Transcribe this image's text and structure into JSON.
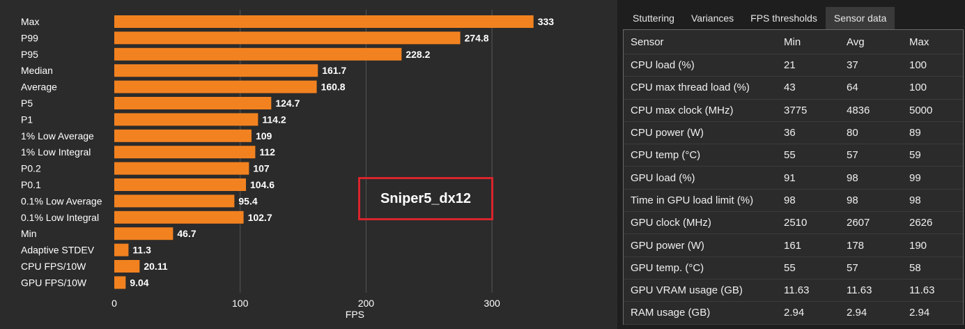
{
  "chart_data": {
    "type": "bar",
    "orientation": "horizontal",
    "categories": [
      "Max",
      "P99",
      "P95",
      "Median",
      "Average",
      "P5",
      "P1",
      "1% Low Average",
      "1% Low Integral",
      "P0.2",
      "P0.1",
      "0.1% Low Average",
      "0.1% Low Integral",
      "Min",
      "Adaptive STDEV",
      "CPU FPS/10W",
      "GPU FPS/10W"
    ],
    "values": [
      333,
      274.8,
      228.2,
      161.7,
      160.8,
      124.7,
      114.2,
      109,
      112,
      107,
      104.6,
      95.4,
      102.7,
      46.7,
      11.3,
      20.11,
      9.04
    ],
    "value_labels": [
      "333",
      "274.8",
      "228.2",
      "161.7",
      "160.8",
      "124.7",
      "114.2",
      "109",
      "112",
      "107",
      "104.6",
      "95.4",
      "102.7",
      "46.7",
      "11.3",
      "20.11",
      "9.04"
    ],
    "xlabel": "FPS",
    "xlim": [
      0,
      350
    ],
    "xticks": [
      0,
      100,
      200,
      300
    ],
    "grid": true,
    "bar_color": "#f28220"
  },
  "overlay_label": "Sniper5_dx12",
  "tabs": [
    {
      "label": "Stuttering",
      "active": false
    },
    {
      "label": "Variances",
      "active": false
    },
    {
      "label": "FPS thresholds",
      "active": false
    },
    {
      "label": "Sensor data",
      "active": true
    }
  ],
  "sensor_table": {
    "headers": {
      "sensor": "Sensor",
      "min": "Min",
      "avg": "Avg",
      "max": "Max"
    },
    "rows": [
      {
        "sensor": "CPU load (%)",
        "min": "21",
        "avg": "37",
        "max": "100"
      },
      {
        "sensor": "CPU max thread load (%)",
        "min": "43",
        "avg": "64",
        "max": "100"
      },
      {
        "sensor": "CPU max clock (MHz)",
        "min": "3775",
        "avg": "4836",
        "max": "5000"
      },
      {
        "sensor": "CPU power (W)",
        "min": "36",
        "avg": "80",
        "max": "89"
      },
      {
        "sensor": "CPU temp (°C)",
        "min": "55",
        "avg": "57",
        "max": "59"
      },
      {
        "sensor": "GPU load (%)",
        "min": "91",
        "avg": "98",
        "max": "99"
      },
      {
        "sensor": "Time in GPU load limit (%)",
        "min": "98",
        "avg": "98",
        "max": "98"
      },
      {
        "sensor": "GPU clock (MHz)",
        "min": "2510",
        "avg": "2607",
        "max": "2626"
      },
      {
        "sensor": "GPU power (W)",
        "min": "161",
        "avg": "178",
        "max": "190"
      },
      {
        "sensor": "GPU temp. (°C)",
        "min": "55",
        "avg": "57",
        "max": "58"
      },
      {
        "sensor": "GPU VRAM usage (GB)",
        "min": "11.63",
        "avg": "11.63",
        "max": "11.63"
      },
      {
        "sensor": "RAM usage (GB)",
        "min": "2.94",
        "avg": "2.94",
        "max": "2.94"
      }
    ]
  }
}
